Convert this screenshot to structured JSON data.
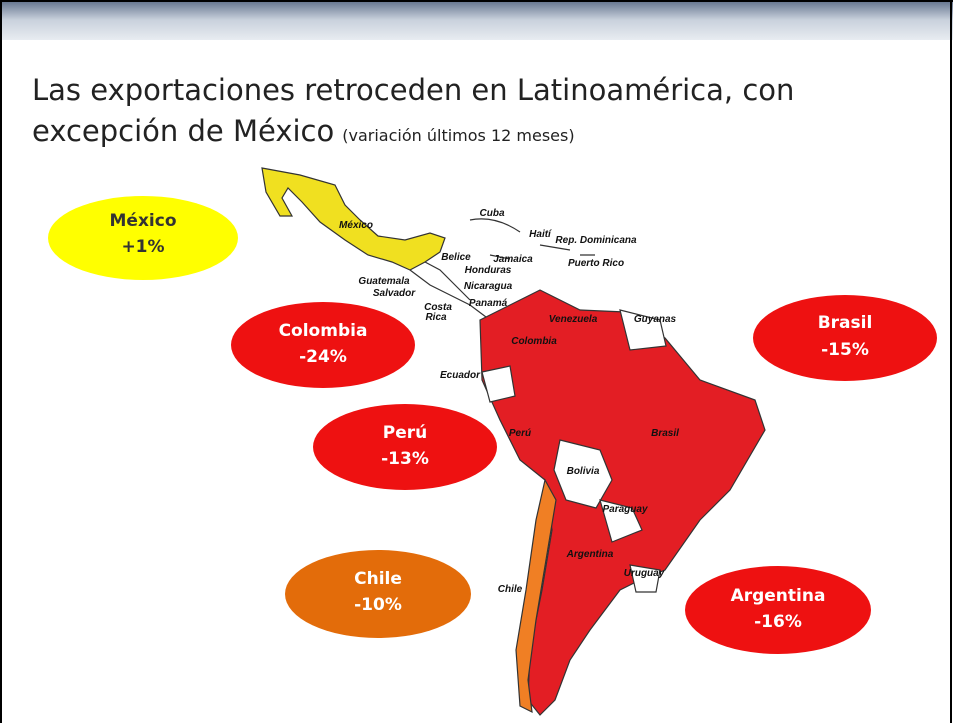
{
  "header": {
    "title_line1": "Las exportaciones retroceden en Latinoamérica, con",
    "title_line2": "excepción de México",
    "subtitle": "(variación últimos 12 meses)"
  },
  "callouts": [
    {
      "country": "México",
      "change": "+1%"
    },
    {
      "country": "Colombia",
      "change": "-24%"
    },
    {
      "country": "Brasil",
      "change": "-15%"
    },
    {
      "country": "Perú",
      "change": "-13%"
    },
    {
      "country": "Chile",
      "change": "-10%"
    },
    {
      "country": "Argentina",
      "change": "-16%"
    }
  ],
  "map_labels": [
    "México",
    "Cuba",
    "Haití",
    "Rep. Dominicana",
    "Jamaica",
    "Puerto Rico",
    "Belice",
    "Honduras",
    "Guatemala",
    "Salvador",
    "Nicaragua",
    "Costa",
    "Rica",
    "Panamá",
    "Venezuela",
    "Guyanas",
    "Colombia",
    "Ecuador",
    "Perú",
    "Brasil",
    "Bolivia",
    "Paraguay",
    "Argentina",
    "Uruguay",
    "Chile"
  ]
}
